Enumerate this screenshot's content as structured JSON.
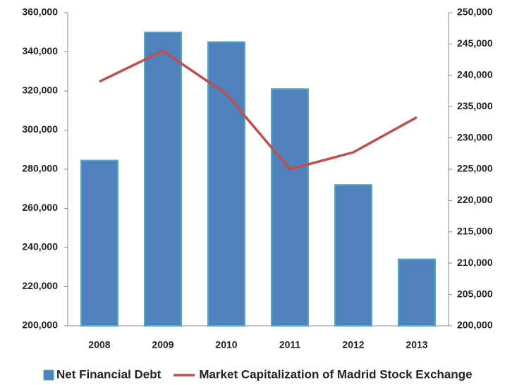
{
  "chart_data": {
    "type": "bar",
    "categories": [
      "2008",
      "2009",
      "2010",
      "2011",
      "2012",
      "2013"
    ],
    "series": [
      {
        "name": "Net Financial Debt",
        "color": "#4f81bd",
        "values": [
          284500,
          350000,
          345000,
          321000,
          272000,
          234000
        ]
      },
      {
        "name": "Market Capitalization of Madrid Stock Exchange",
        "color": "#c0504d",
        "type": "line",
        "axis": "y2",
        "values": [
          239000,
          243900,
          237000,
          225000,
          227700,
          233300
        ]
      }
    ],
    "ylim": [
      200000,
      360000
    ],
    "yticks": [
      {
        "value": 200000,
        "label": "200,000"
      },
      {
        "value": 220000,
        "label": "220,000"
      },
      {
        "value": 240000,
        "label": "240,000"
      },
      {
        "value": 260000,
        "label": "260,000"
      },
      {
        "value": 280000,
        "label": "280,000"
      },
      {
        "value": 300000,
        "label": "300,000"
      },
      {
        "value": 320000,
        "label": "320,000"
      },
      {
        "value": 340000,
        "label": "340,000"
      },
      {
        "value": 360000,
        "label": "360,000"
      }
    ],
    "y2lim": [
      200000,
      250000
    ],
    "y2ticks": [
      {
        "value": 200000,
        "label": "200,000"
      },
      {
        "value": 205000,
        "label": "205,000"
      },
      {
        "value": 210000,
        "label": "210,000"
      },
      {
        "value": 215000,
        "label": "215,000"
      },
      {
        "value": 220000,
        "label": "220,000"
      },
      {
        "value": 225000,
        "label": "225,000"
      },
      {
        "value": 230000,
        "label": "230,000"
      },
      {
        "value": 235000,
        "label": "235,000"
      },
      {
        "value": 240000,
        "label": "240,000"
      },
      {
        "value": 245000,
        "label": "245,000"
      },
      {
        "value": 250000,
        "label": "250,000"
      }
    ],
    "grid": false
  }
}
